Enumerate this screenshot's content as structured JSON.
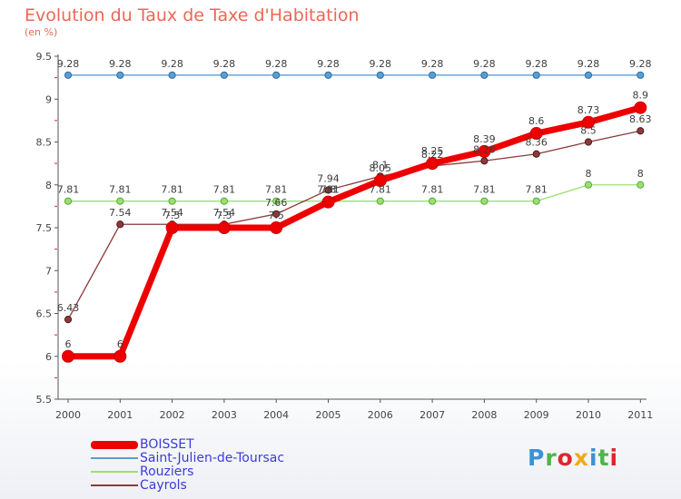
{
  "header": {
    "title": "Evolution du Taux de Taxe d'Habitation",
    "subtitle": "(en %)"
  },
  "logo": {
    "letters": [
      "P",
      "r",
      "o",
      "x",
      "i",
      "t",
      "i"
    ]
  },
  "chart_data": {
    "type": "line",
    "x": [
      "2000",
      "2001",
      "2002",
      "2003",
      "2004",
      "2005",
      "2006",
      "2007",
      "2008",
      "2009",
      "2010",
      "2011"
    ],
    "ylim": [
      5.5,
      9.5
    ],
    "yticks": [
      "5.5",
      "6",
      "6.5",
      "7",
      "7.5",
      "8",
      "8.5",
      "9",
      "9.5"
    ],
    "grid": false,
    "legend_position": "bottom-left",
    "series": [
      {
        "name": "BOISSET",
        "color": "#ee0000",
        "values": [
          6,
          6,
          7.5,
          7.5,
          7.5,
          7.8,
          8.05,
          8.25,
          8.39,
          8.6,
          8.73,
          8.9
        ],
        "labels": [
          "6",
          "6",
          "7.5",
          "7.5",
          "7.5",
          "7.8",
          "8.05",
          "8.25",
          "8.39",
          "8.6",
          "8.73",
          "8.9"
        ]
      },
      {
        "name": "Saint-Julien-de-Toursac",
        "color": "#5a9ed6",
        "values": [
          9.28,
          9.28,
          9.28,
          9.28,
          9.28,
          9.28,
          9.28,
          9.28,
          9.28,
          9.28,
          9.28,
          9.28
        ],
        "labels": [
          "9.28",
          "9.28",
          "9.28",
          "9.28",
          "9.28",
          "9.28",
          "9.28",
          "9.28",
          "9.28",
          "9.28",
          "9.28",
          "9.28"
        ]
      },
      {
        "name": "Rouziers",
        "color": "#99e070",
        "values": [
          7.81,
          7.81,
          7.81,
          7.81,
          7.81,
          7.81,
          7.81,
          7.81,
          7.81,
          7.81,
          8,
          8
        ],
        "labels": [
          "7.81",
          "7.81",
          "7.81",
          "7.81",
          "7.81",
          "7.81",
          "7.81",
          "7.81",
          "7.81",
          "7.81",
          "8",
          "8"
        ]
      },
      {
        "name": "Cayrols",
        "color": "#8b3a3a",
        "values": [
          6.43,
          7.54,
          7.54,
          7.54,
          7.66,
          7.94,
          8.1,
          8.22,
          8.28,
          8.36,
          8.5,
          8.63
        ],
        "labels": [
          "6.43",
          "7.54",
          "7.54",
          "7.54",
          "7.66",
          "7.94",
          "8.1",
          "8.22",
          "8.28",
          "8.36",
          "8.5",
          "8.63"
        ]
      }
    ]
  }
}
